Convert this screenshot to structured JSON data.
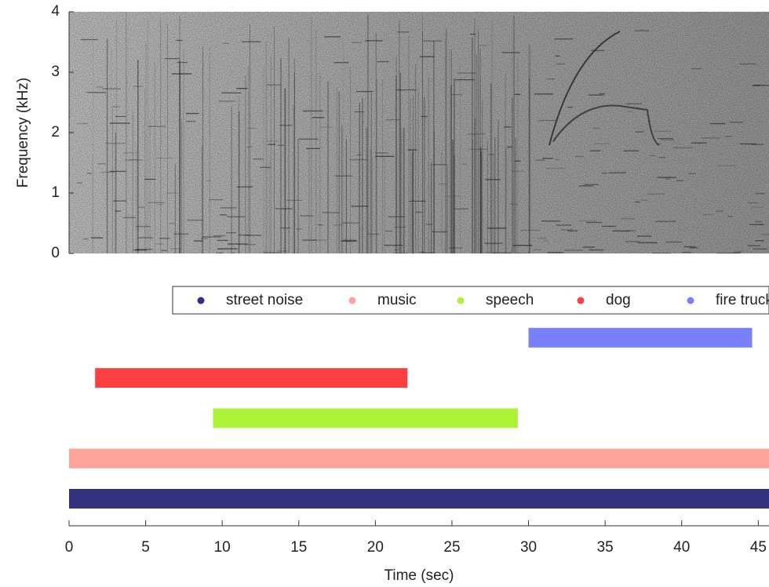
{
  "chart_data": [
    {
      "type": "spectrogram",
      "ylabel": "Frequency (kHz)",
      "xlim": [
        0,
        45.7
      ],
      "ylim": [
        0,
        4
      ],
      "yticks": [
        0,
        1,
        2,
        3,
        4
      ]
    },
    {
      "type": "timeline",
      "xlabel": "Time (sec)",
      "xlim": [
        0,
        45.7
      ],
      "xticks": [
        0,
        5,
        10,
        15,
        20,
        25,
        30,
        35,
        40,
        45
      ],
      "legend": "top-right",
      "series": [
        {
          "name": "street noise",
          "color": "#33307c",
          "start": 0,
          "end": 45.7
        },
        {
          "name": "music",
          "color": "#fda59a",
          "start": 0,
          "end": 45.7
        },
        {
          "name": "speech",
          "color": "#aef23a",
          "start": 9.4,
          "end": 29.3
        },
        {
          "name": "dog",
          "color": "#fe3f42",
          "start": 1.7,
          "end": 22.1
        },
        {
          "name": "fire truck",
          "color": "#7880fb",
          "start": 30.0,
          "end": 44.6
        }
      ]
    }
  ]
}
